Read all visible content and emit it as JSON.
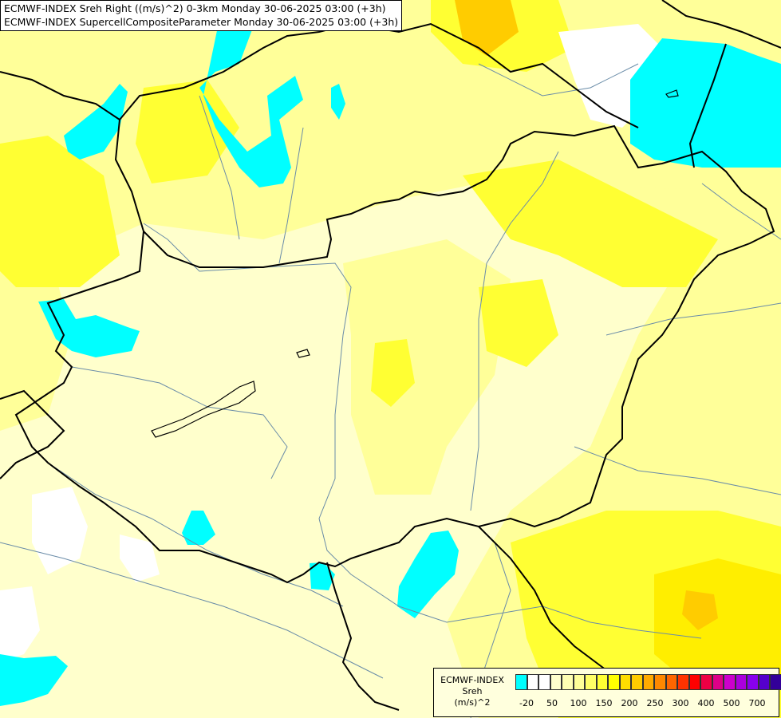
{
  "title_lines": [
    "ECMWF-INDEX Sreh Right ((m/s)^2) 0-3km Monday 30-06-2025 03:00 (+3h)",
    "ECMWF-INDEX SupercellCompositeParameter Monday 30-06-2025 03:00 (+3h)"
  ],
  "legend": {
    "title_lines": [
      "ECMWF-INDEX",
      "Sreh",
      "(m/s)^2"
    ],
    "swatch_colors": [
      "#00ffff",
      "#ffffff",
      "#ffffff",
      "#ffffcc",
      "#ffffb3",
      "#ffff99",
      "#ffff66",
      "#ffff33",
      "#ffff00",
      "#ffdd00",
      "#ffcc00",
      "#ffaa00",
      "#ff8800",
      "#ff6600",
      "#ff3300",
      "#ff0000",
      "#ee0044",
      "#dd0088",
      "#cc00cc",
      "#aa00dd",
      "#8800ee",
      "#5500cc",
      "#330099",
      "#000088"
    ],
    "tick_labels": [
      "-20",
      "50",
      "100",
      "150",
      "200",
      "250",
      "300",
      "400",
      "500",
      "700"
    ]
  },
  "colors": {
    "cyan": "#00ffff",
    "white": "#ffffff",
    "pale": "#ffffcc",
    "light": "#ffff99",
    "yellow": "#ffff33",
    "bright": "#ffee00",
    "gold": "#ffcc00",
    "border": "#000000",
    "river": "#6a8ca8"
  }
}
